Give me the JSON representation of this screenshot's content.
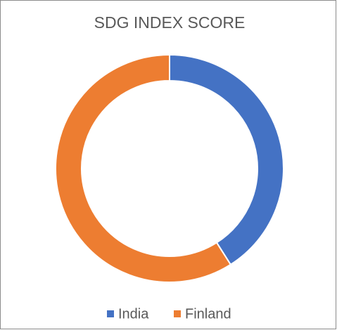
{
  "chart_data": {
    "type": "donut",
    "title": "SDG INDEX SCORE",
    "categories": [
      "India",
      "Finland"
    ],
    "values": [
      41,
      59
    ],
    "colors": [
      "#4472c4",
      "#ed7d31"
    ],
    "legend": "bottom"
  }
}
